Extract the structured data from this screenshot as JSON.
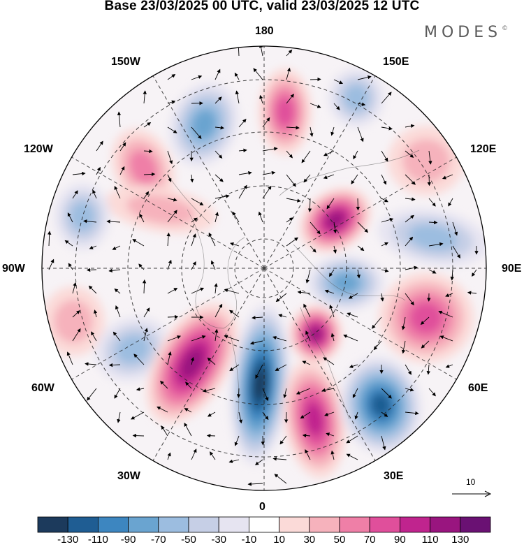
{
  "title": "Base 23/03/2025 00 UTC, valid 23/03/2025 12 UTC",
  "brand": {
    "name": "MODES",
    "mark": "©"
  },
  "longitude_labels": {
    "top": "180",
    "top_left": "150W",
    "top_right": "150E",
    "upper_left": "120W",
    "upper_right": "120E",
    "left": "90W",
    "right": "90E",
    "lower_left": "60W",
    "lower_right": "60E",
    "bottom_left": "30W",
    "bottom_right": "30E",
    "bottom": "0"
  },
  "vector_scale": {
    "label": "10"
  },
  "colorbar": {
    "ticks": [
      "-130",
      "-110",
      "-90",
      "-70",
      "-50",
      "-30",
      "-10",
      "10",
      "30",
      "50",
      "70",
      "90",
      "110",
      "130"
    ],
    "colors": [
      "#1c3a5c",
      "#1f5d93",
      "#3d86c0",
      "#6aa4d0",
      "#9cbde0",
      "#c6cfe6",
      "#e6e4f1",
      "#ffffff",
      "#fbdad8",
      "#f6b2bc",
      "#ef7fa7",
      "#e04f9b",
      "#c0248e",
      "#99157f",
      "#6a1173"
    ]
  },
  "anomaly_centers": [
    {
      "lon_label": "near 165W",
      "value": -70
    },
    {
      "lon_label": "near 175E",
      "value": 70
    },
    {
      "lon_label": "near 165E",
      "value": -50
    },
    {
      "lon_label": "near 135W",
      "value": 50
    },
    {
      "lon_label": "near 110W",
      "value": 30
    },
    {
      "lon_label": "near 95W",
      "value": -50
    },
    {
      "lon_label": "near 75W",
      "value": 30
    },
    {
      "lon_label": "near 65W",
      "value": -50
    },
    {
      "lon_label": "near 45W",
      "value": 110
    },
    {
      "lon_label": "near 10W",
      "value": -130
    },
    {
      "lon_label": "near 20E",
      "value": 90
    },
    {
      "lon_label": "near 45E",
      "value": -110
    },
    {
      "lon_label": "near 55E",
      "value": 110
    },
    {
      "lon_label": "near 75E",
      "value": 70
    },
    {
      "lon_label": "near 95E",
      "value": -70
    },
    {
      "lon_label": "near 100E",
      "value": -50
    },
    {
      "lon_label": "near 130E",
      "value": 110
    },
    {
      "lon_label": "near 135E",
      "value": 30
    }
  ]
}
